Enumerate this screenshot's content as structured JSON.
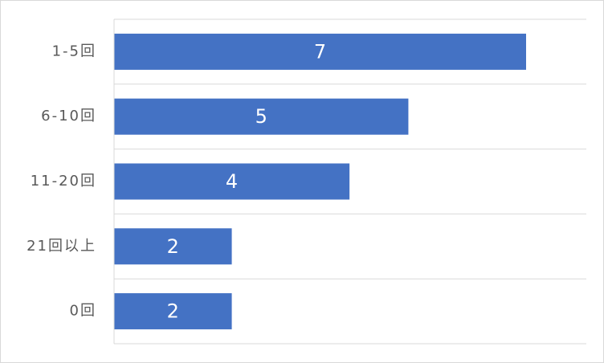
{
  "chart_data": {
    "type": "bar",
    "orientation": "horizontal",
    "categories": [
      "1-5回",
      "6-10回",
      "11-20回",
      "21回以上",
      "0回"
    ],
    "values": [
      7,
      5,
      4,
      2,
      2
    ],
    "title": "",
    "xlabel": "",
    "ylabel": "",
    "xlim": [
      0,
      8
    ],
    "grid": true,
    "legend": "none",
    "data_labels": true,
    "bar_color": "#4472C4",
    "label_color": "#FFFFFF",
    "gridline_color": "#D9D9D9",
    "category_label_color": "#595959"
  }
}
